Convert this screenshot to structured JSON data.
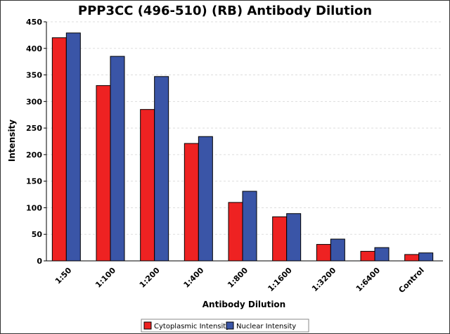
{
  "chart_data": {
    "type": "bar",
    "title": "PPP3CC (496-510) (RB) Antibody Dilution",
    "xlabel": "Antibody Dilution",
    "ylabel": "Intensity",
    "categories": [
      "1:50",
      "1:100",
      "1:200",
      "1:400",
      "1:800",
      "1:1600",
      "1:3200",
      "1:6400",
      "Control"
    ],
    "ylim": [
      0,
      450
    ],
    "yticks": [
      0,
      50,
      100,
      150,
      200,
      250,
      300,
      350,
      400,
      450
    ],
    "grid": true,
    "legend_position": "bottom",
    "series": [
      {
        "name": "Cytoplasmic Intensity",
        "color": "#ee2222",
        "values": [
          420,
          330,
          285,
          221,
          110,
          83,
          31,
          18,
          12
        ]
      },
      {
        "name": "Nuclear Intensity",
        "color": "#3a55a7",
        "values": [
          429,
          385,
          347,
          234,
          131,
          89,
          41,
          25,
          15
        ]
      }
    ]
  }
}
